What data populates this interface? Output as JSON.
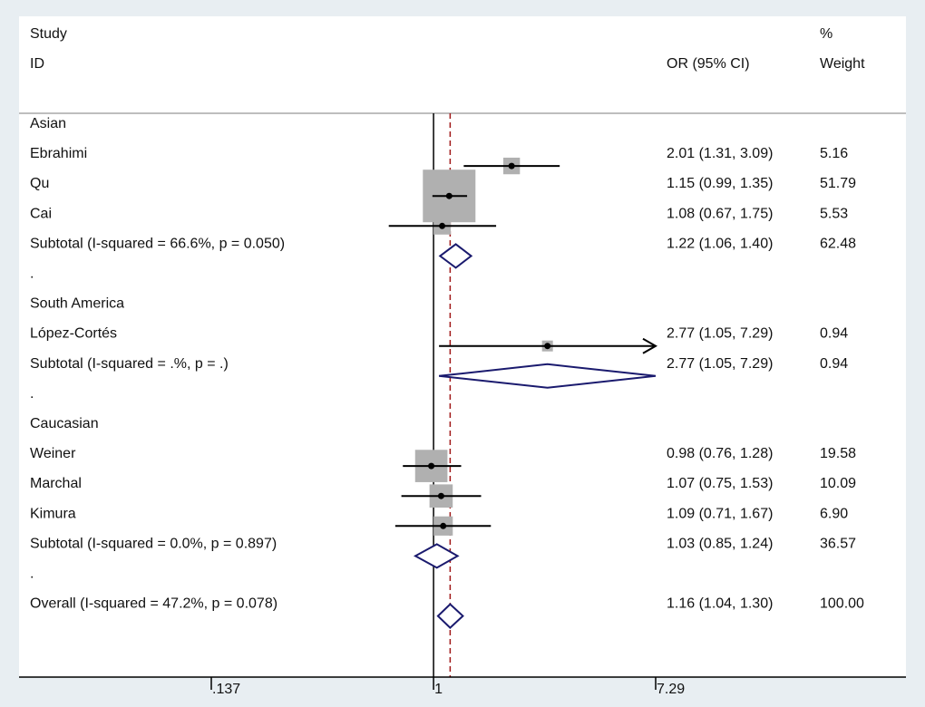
{
  "chart_data": {
    "type": "forest",
    "header": {
      "study": "Study",
      "id": "ID",
      "or_ci": "OR (95% CI)",
      "pct": "%",
      "weight": "Weight"
    },
    "x_scale": "log",
    "xlim": [
      0.137,
      7.29
    ],
    "ticks": [
      {
        "value": 0.137,
        "label": ".137"
      },
      {
        "value": 1,
        "label": "1"
      },
      {
        "value": 7.29,
        "label": "7.29"
      }
    ],
    "null_line": 1,
    "overall_line": 1.16,
    "rows": [
      {
        "kind": "group",
        "label": "Asian"
      },
      {
        "kind": "study",
        "label": "Ebrahimi",
        "or": 2.01,
        "lo": 1.31,
        "hi": 3.09,
        "ci_text": "2.01 (1.31, 3.09)",
        "weight": "5.16"
      },
      {
        "kind": "study",
        "label": "Qu",
        "or": 1.15,
        "lo": 0.99,
        "hi": 1.35,
        "ci_text": "1.15 (0.99, 1.35)",
        "weight": "51.79"
      },
      {
        "kind": "study",
        "label": "Cai",
        "or": 1.08,
        "lo": 0.67,
        "hi": 1.75,
        "ci_text": "1.08 (0.67, 1.75)",
        "weight": "5.53"
      },
      {
        "kind": "subtotal",
        "label": "Subtotal  (I-squared = 66.6%, p = 0.050)",
        "or": 1.22,
        "lo": 1.06,
        "hi": 1.4,
        "ci_text": "1.22 (1.06, 1.40)",
        "weight": "62.48"
      },
      {
        "kind": "spacer",
        "label": "."
      },
      {
        "kind": "group",
        "label": "South America"
      },
      {
        "kind": "study",
        "label": "López-Cortés",
        "or": 2.77,
        "lo": 1.05,
        "hi": 7.29,
        "ci_text": "2.77 (1.05, 7.29)",
        "weight": "0.94"
      },
      {
        "kind": "subtotal",
        "label": "Subtotal  (I-squared = .%, p = .)",
        "or": 2.77,
        "lo": 1.05,
        "hi": 7.29,
        "ci_text": "2.77 (1.05, 7.29)",
        "weight": "0.94"
      },
      {
        "kind": "spacer",
        "label": "."
      },
      {
        "kind": "group",
        "label": "Caucasian"
      },
      {
        "kind": "study",
        "label": "Weiner",
        "or": 0.98,
        "lo": 0.76,
        "hi": 1.28,
        "ci_text": "0.98 (0.76, 1.28)",
        "weight": "19.58"
      },
      {
        "kind": "study",
        "label": "Marchal",
        "or": 1.07,
        "lo": 0.75,
        "hi": 1.53,
        "ci_text": "1.07 (0.75, 1.53)",
        "weight": "10.09"
      },
      {
        "kind": "study",
        "label": "Kimura",
        "or": 1.09,
        "lo": 0.71,
        "hi": 1.67,
        "ci_text": "1.09 (0.71, 1.67)",
        "weight": "6.90"
      },
      {
        "kind": "subtotal",
        "label": "Subtotal  (I-squared = 0.0%, p = 0.897)",
        "or": 1.03,
        "lo": 0.85,
        "hi": 1.24,
        "ci_text": "1.03 (0.85, 1.24)",
        "weight": "36.57"
      },
      {
        "kind": "spacer",
        "label": "."
      },
      {
        "kind": "overall",
        "label": "Overall  (I-squared = 47.2%, p = 0.078)",
        "or": 1.16,
        "lo": 1.04,
        "hi": 1.3,
        "ci_text": "1.16 (1.04, 1.30)",
        "weight": "100.00"
      }
    ],
    "colors": {
      "background": "#e8eef2",
      "panel": "#ffffff",
      "box": "#b0b0b0",
      "diamond": "#1a1a6e",
      "overall_line": "#a01818",
      "text": "#111111"
    }
  }
}
